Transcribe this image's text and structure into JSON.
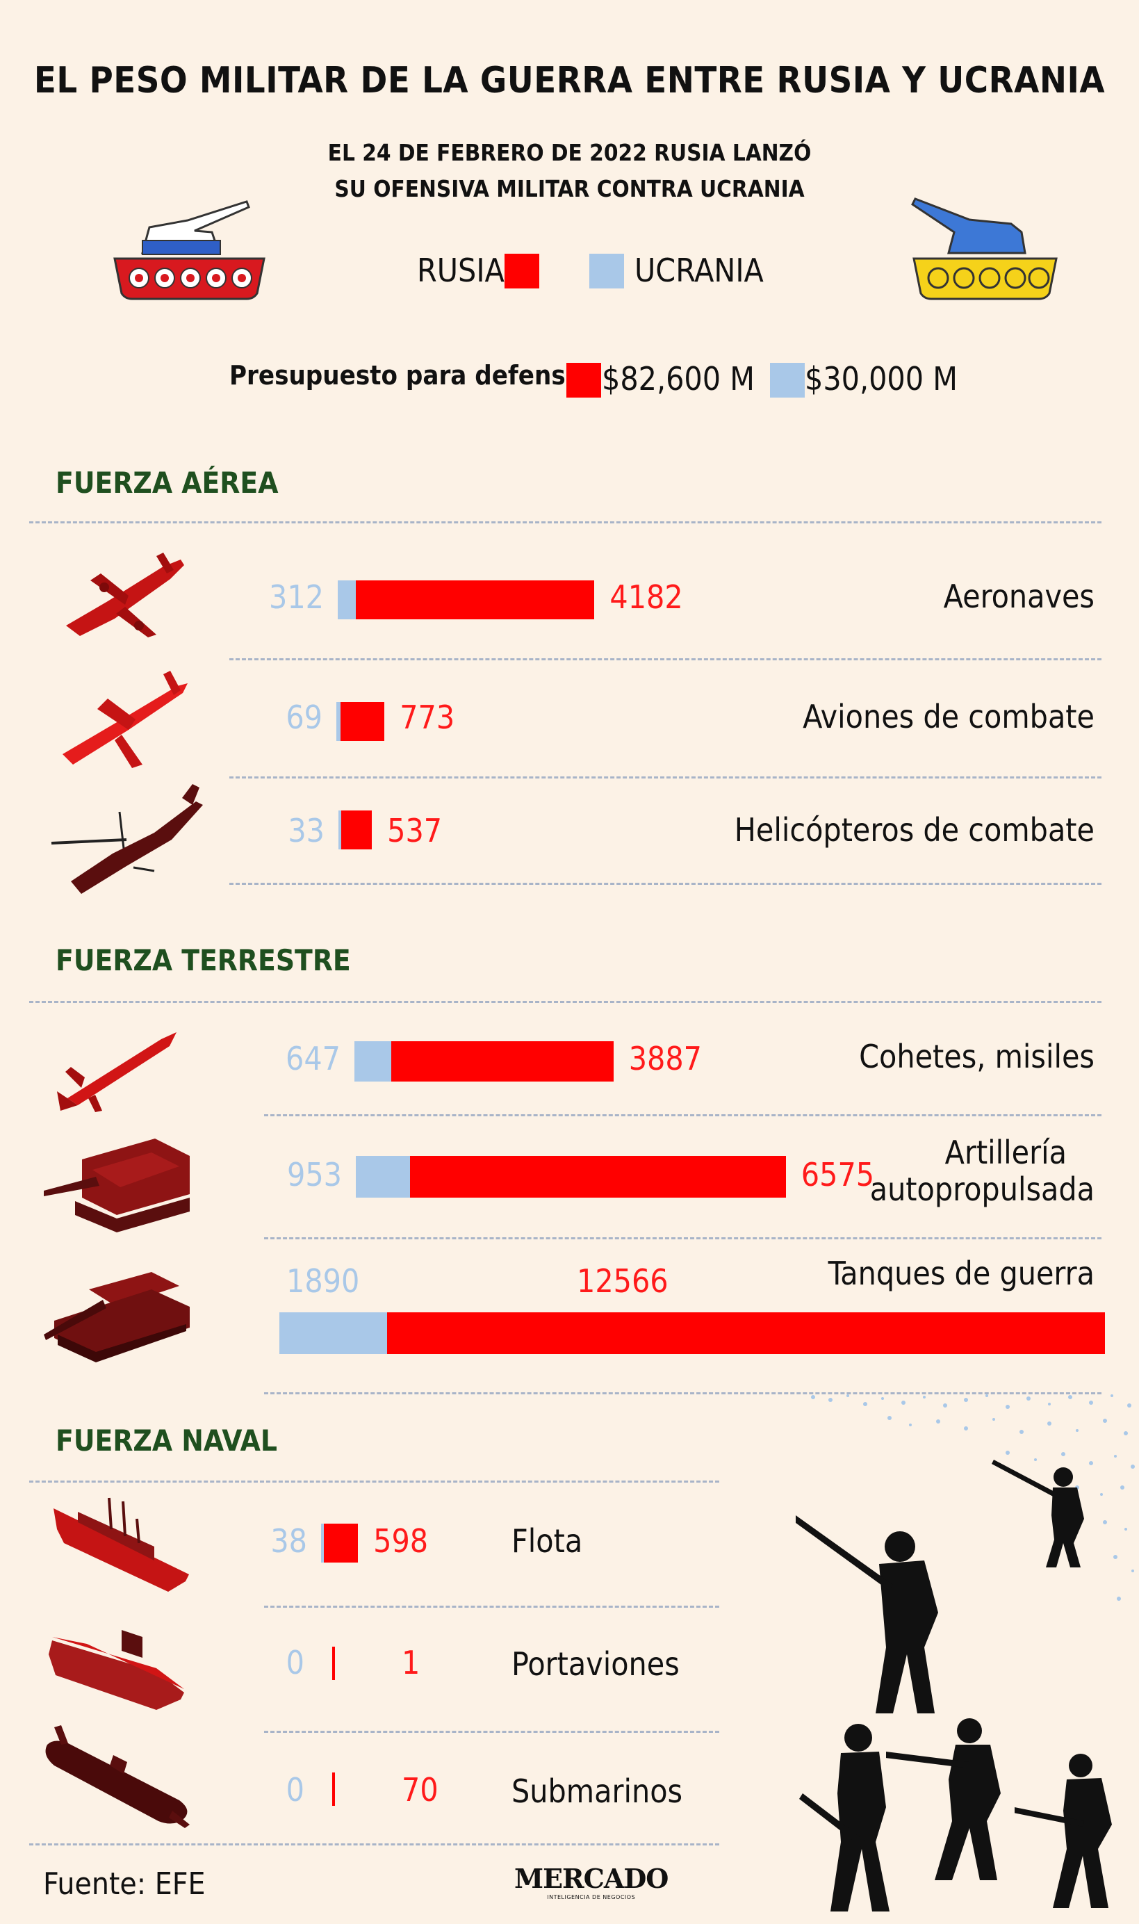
{
  "title": "EL PESO MILITAR DE LA GUERRA ENTRE RUSIA Y UCRANIA",
  "subtitle_line1": "EL 24 DE FEBRERO DE 2022 RUSIA LANZÓ",
  "subtitle_line2": "SU OFENSIVA MILITAR CONTRA UCRANIA",
  "legend": {
    "russia": "RUSIA",
    "ukraine": "UCRANIA"
  },
  "budget": {
    "label": "Presupuesto para defensa",
    "russia": "$82,600 M",
    "ukraine": "$30,000 M"
  },
  "sections": {
    "air": "FUERZA AÉREA",
    "land": "FUERZA TERRESTRE",
    "naval": "FUERZA NAVAL"
  },
  "colors": {
    "russia": "#ff0000",
    "ukraine": "#a9c8e8",
    "section": "#1f4f1f",
    "background": "#fcf2e6"
  },
  "icons": [
    "tank-russia-icon",
    "tank-ukraine-icon",
    "cargo-plane-icon",
    "fighter-jet-icon",
    "helicopter-icon",
    "missile-icon",
    "self-propelled-artillery-icon",
    "battle-tank-icon",
    "warship-icon",
    "aircraft-carrier-icon",
    "submarine-icon",
    "soldier-icon"
  ],
  "chart_data": {
    "type": "bar",
    "series_names": [
      "UCRANIA",
      "RUSIA"
    ],
    "items": [
      {
        "key": "aeronaves",
        "section": "air",
        "label": "Aeronaves",
        "ukraine": 312,
        "russia": 4182
      },
      {
        "key": "aviones",
        "section": "air",
        "label": "Aviones de combate",
        "ukraine": 69,
        "russia": 773
      },
      {
        "key": "helicopteros",
        "section": "air",
        "label": "Helicópteros de combate",
        "ukraine": 33,
        "russia": 537
      },
      {
        "key": "cohetes",
        "section": "land",
        "label": "Cohetes, misiles",
        "ukraine": 647,
        "russia": 3887
      },
      {
        "key": "artilleria",
        "section": "land",
        "label_line1": "Artillería",
        "label_line2": "autopropulsada",
        "ukraine": 953,
        "russia": 6575
      },
      {
        "key": "tanques",
        "section": "land",
        "label": "Tanques de guerra",
        "ukraine": 1890,
        "russia": 12566
      },
      {
        "key": "flota",
        "section": "naval",
        "label": "Flota",
        "ukraine": 38,
        "russia": 598
      },
      {
        "key": "portaviones",
        "section": "naval",
        "label": "Portaviones",
        "ukraine": 0,
        "russia": 1
      },
      {
        "key": "submarinos",
        "section": "naval",
        "label": "Submarinos",
        "ukraine": 0,
        "russia": 70
      }
    ]
  },
  "source": "Fuente: EFE",
  "logo": {
    "name": "MERCADO",
    "tagline": "INTELIGENCIA DE NEGOCIOS"
  }
}
